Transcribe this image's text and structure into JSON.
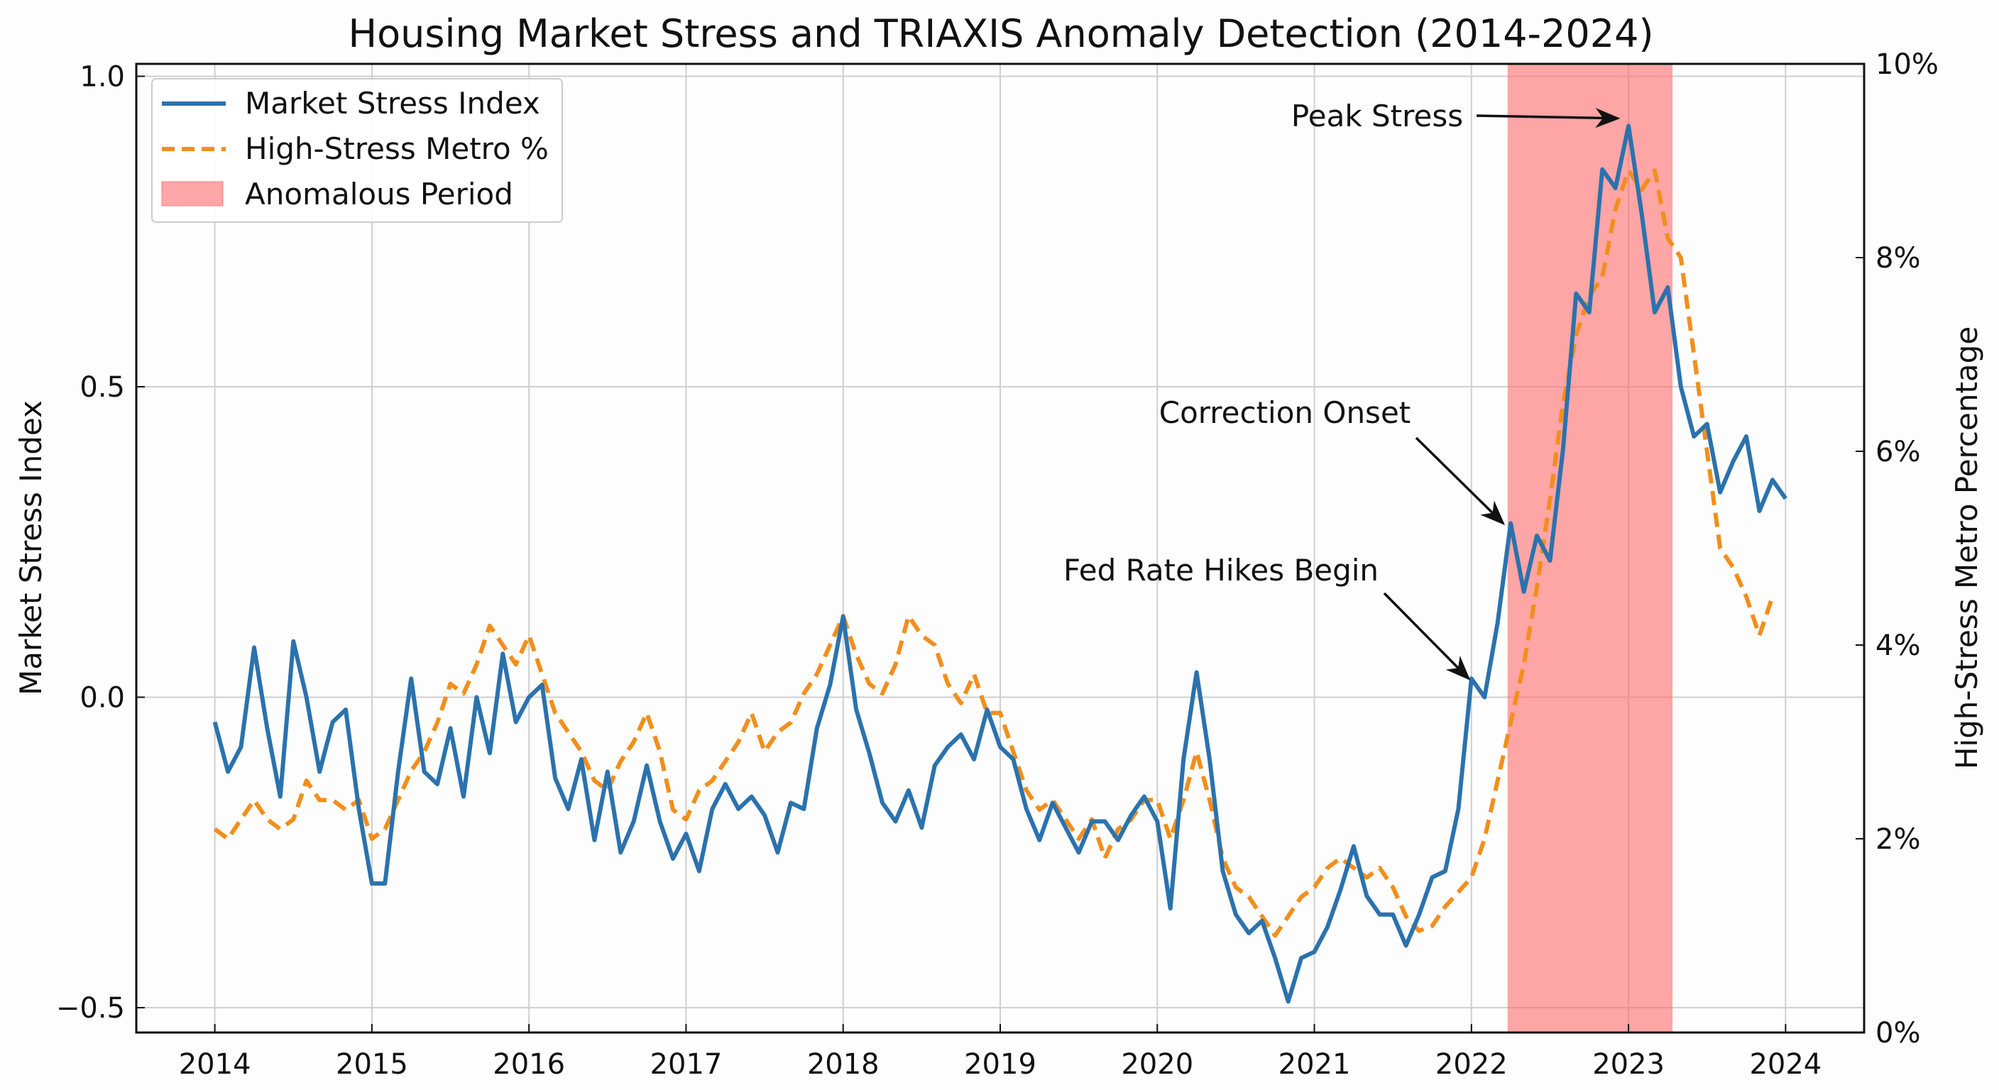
{
  "chart_data": {
    "type": "line",
    "title": "Housing Market Stress and TRIAXIS Anomaly Detection (2014-2024)",
    "xlabel": "",
    "ylabel": "Market Stress Index",
    "ylabel_right": "High-Stress Metro Percentage",
    "xlim": [
      2013.5,
      2024.5
    ],
    "ylim": [
      -0.54,
      1.02
    ],
    "ylim_right": [
      0,
      10
    ],
    "x_ticks": [
      "2014",
      "2015",
      "2016",
      "2017",
      "2018",
      "2019",
      "2020",
      "2021",
      "2022",
      "2023",
      "2024"
    ],
    "y_ticks": [
      "1.0",
      "0.5",
      "0.0",
      "−0.5"
    ],
    "y_tick_values": [
      1.0,
      0.5,
      0.0,
      -0.5
    ],
    "y_right_ticks": [
      "10%",
      "8%",
      "6%",
      "4%",
      "2%",
      "0%"
    ],
    "y_right_tick_values": [
      10,
      8,
      6,
      4,
      2,
      0
    ],
    "grid": true,
    "legend_position": "top-left",
    "x_start": 2014.0,
    "x_step_months": 1,
    "series": [
      {
        "name": "Market Stress Index",
        "axis": "left",
        "style": "solid",
        "color": "#2b72ad",
        "values": [
          -0.04,
          -0.12,
          -0.08,
          0.08,
          -0.05,
          -0.16,
          0.09,
          0.0,
          -0.12,
          -0.04,
          -0.02,
          -0.18,
          -0.3,
          -0.3,
          -0.12,
          0.03,
          -0.12,
          -0.14,
          -0.05,
          -0.16,
          0.0,
          -0.09,
          0.07,
          -0.04,
          0.0,
          0.02,
          -0.13,
          -0.18,
          -0.1,
          -0.23,
          -0.12,
          -0.25,
          -0.2,
          -0.11,
          -0.2,
          -0.26,
          -0.22,
          -0.28,
          -0.18,
          -0.14,
          -0.18,
          -0.16,
          -0.19,
          -0.25,
          -0.17,
          -0.18,
          -0.05,
          0.02,
          0.13,
          -0.02,
          -0.09,
          -0.17,
          -0.2,
          -0.15,
          -0.21,
          -0.11,
          -0.08,
          -0.06,
          -0.1,
          -0.02,
          -0.08,
          -0.1,
          -0.18,
          -0.23,
          -0.17,
          -0.21,
          -0.25,
          -0.2,
          -0.2,
          -0.23,
          -0.19,
          -0.16,
          -0.2,
          -0.34,
          -0.1,
          0.04,
          -0.1,
          -0.28,
          -0.35,
          -0.38,
          -0.36,
          -0.42,
          -0.49,
          -0.42,
          -0.41,
          -0.37,
          -0.31,
          -0.24,
          -0.32,
          -0.35,
          -0.35,
          -0.4,
          -0.35,
          -0.29,
          -0.28,
          -0.18,
          0.03,
          0.0,
          0.12,
          0.28,
          0.17,
          0.26,
          0.22,
          0.4,
          0.65,
          0.62,
          0.85,
          0.82,
          0.92,
          0.78,
          0.62,
          0.66,
          0.5,
          0.42,
          0.44,
          0.33,
          0.38,
          0.42,
          0.3,
          0.35,
          0.32
        ]
      },
      {
        "name": "High-Stress Metro %",
        "axis": "right",
        "style": "dashed",
        "color": "#f28e1c",
        "values": [
          2.1,
          2.0,
          2.2,
          2.4,
          2.2,
          2.1,
          2.2,
          2.6,
          2.4,
          2.4,
          2.3,
          2.4,
          2.0,
          2.1,
          2.4,
          2.7,
          2.9,
          3.2,
          3.6,
          3.5,
          3.8,
          4.2,
          4.0,
          3.8,
          4.1,
          3.7,
          3.3,
          3.1,
          2.9,
          2.6,
          2.5,
          2.8,
          3.0,
          3.3,
          2.9,
          2.3,
          2.2,
          2.5,
          2.6,
          2.8,
          3.0,
          3.3,
          2.9,
          3.1,
          3.2,
          3.5,
          3.7,
          4.0,
          4.3,
          3.9,
          3.6,
          3.5,
          3.8,
          4.3,
          4.1,
          4.0,
          3.6,
          3.4,
          3.7,
          3.3,
          3.3,
          2.9,
          2.5,
          2.3,
          2.4,
          2.2,
          2.0,
          2.2,
          1.8,
          2.1,
          2.2,
          2.4,
          2.4,
          2.0,
          2.4,
          2.9,
          2.4,
          1.8,
          1.5,
          1.4,
          1.2,
          1.0,
          1.2,
          1.4,
          1.5,
          1.7,
          1.8,
          1.7,
          1.6,
          1.7,
          1.5,
          1.2,
          1.05,
          1.1,
          1.3,
          1.45,
          1.6,
          2.0,
          2.6,
          3.2,
          3.8,
          4.6,
          5.5,
          6.5,
          7.2,
          7.6,
          7.8,
          8.5,
          8.9,
          8.7,
          8.9,
          8.2,
          8.0,
          7.0,
          6.0,
          5.0,
          4.8,
          4.5,
          4.1,
          4.5
        ]
      }
    ],
    "shaded_regions": [
      {
        "name": "Anomalous Period",
        "x_start": 2022.23,
        "x_end": 2023.28,
        "color": "#ff6b6b"
      }
    ],
    "annotations": [
      {
        "text": "Peak Stress",
        "x": 2022.95,
        "y": 0.93
      },
      {
        "text": "Correction Onset",
        "x": 2022.22,
        "y": 0.28
      },
      {
        "text": "Fed Rate Hikes Begin",
        "x": 2022.0,
        "y": 0.03
      }
    ]
  }
}
